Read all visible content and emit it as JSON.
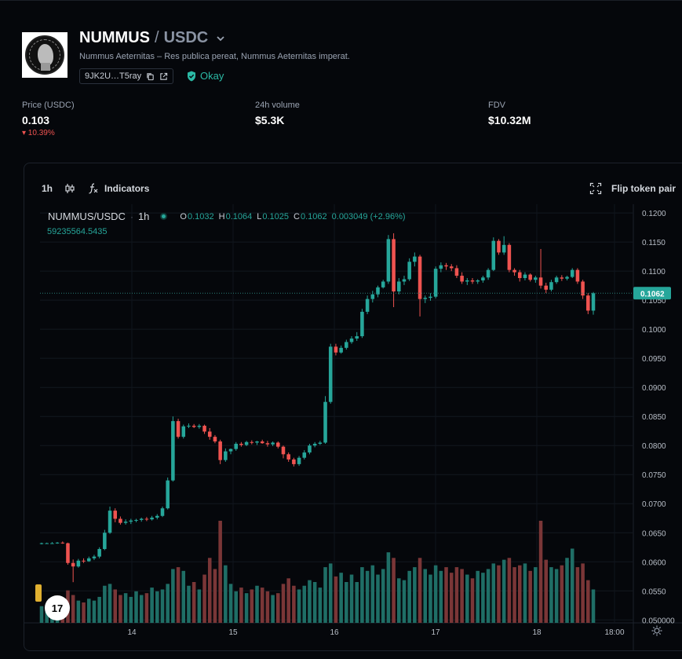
{
  "header": {
    "base_symbol": "NUMMUS",
    "slash": "/",
    "quote_symbol": "USDC",
    "tagline": "Nummus Aeternitas – Res publica pereat, Nummus Aeternitas imperat.",
    "address": "9JK2U…T5ray",
    "status": "Okay",
    "accent": "#26a69a"
  },
  "stats": {
    "price_label": "Price (USDC)",
    "price_value": "0.103",
    "price_change": "▾ 10.39%",
    "volume_label": "24h volume",
    "volume_value": "$5.3K",
    "fdv_label": "FDV",
    "fdv_value": "$10.32M"
  },
  "toolbar": {
    "interval": "1h",
    "indicators_label": "Indicators",
    "flip_label": "Flip token pair"
  },
  "legend": {
    "symbol": "NUMMUS/USDC",
    "interval": "1h",
    "o_key": "O",
    "o_val": "0.1032",
    "h_key": "H",
    "h_val": "0.1064",
    "l_key": "L",
    "l_val": "0.1025",
    "c_key": "C",
    "c_val": "0.1062",
    "change": "0.003049 (+2.96%)",
    "volume": "59235564.5435"
  },
  "tv_logo": "17",
  "chart_data": {
    "type": "candlestick",
    "up_color": "#26a69a",
    "down_color": "#ef5350",
    "last_price": "0.1062",
    "ylim": [
      0.0495,
      0.1215
    ],
    "y_ticks": [
      "0.1200",
      "0.1150",
      "0.1100",
      "0.1050",
      "0.1000",
      "0.0950",
      "0.0900",
      "0.0850",
      "0.0800",
      "0.0750",
      "0.0700",
      "0.0650",
      "0.0600",
      "0.0550",
      "0.050000"
    ],
    "x_ticks": [
      "14",
      "15",
      "16",
      "17",
      "18",
      "18:00"
    ],
    "candles": [
      [
        0.0632,
        0.0633,
        0.063,
        0.0632
      ],
      [
        0.0632,
        0.0633,
        0.0631,
        0.0632
      ],
      [
        0.0632,
        0.0634,
        0.0631,
        0.0632
      ],
      [
        0.0632,
        0.0634,
        0.0631,
        0.0633
      ],
      [
        0.0633,
        0.0635,
        0.0631,
        0.0632
      ],
      [
        0.0632,
        0.0633,
        0.0595,
        0.0598
      ],
      [
        0.0598,
        0.0604,
        0.0565,
        0.0592
      ],
      [
        0.0592,
        0.0605,
        0.059,
        0.0602
      ],
      [
        0.0602,
        0.0606,
        0.0598,
        0.0601
      ],
      [
        0.0601,
        0.0609,
        0.06,
        0.0606
      ],
      [
        0.0606,
        0.0612,
        0.0603,
        0.0609
      ],
      [
        0.0609,
        0.0625,
        0.0606,
        0.0622
      ],
      [
        0.0622,
        0.0655,
        0.062,
        0.065
      ],
      [
        0.065,
        0.0695,
        0.0648,
        0.0688
      ],
      [
        0.0688,
        0.0692,
        0.0668,
        0.0674
      ],
      [
        0.0674,
        0.0678,
        0.0664,
        0.0667
      ],
      [
        0.0667,
        0.0673,
        0.0664,
        0.0669
      ],
      [
        0.0669,
        0.0674,
        0.0665,
        0.0671
      ],
      [
        0.0671,
        0.0674,
        0.0668,
        0.0672
      ],
      [
        0.0672,
        0.0676,
        0.0669,
        0.0674
      ],
      [
        0.0674,
        0.0677,
        0.067,
        0.0673
      ],
      [
        0.0673,
        0.0679,
        0.0671,
        0.0676
      ],
      [
        0.0676,
        0.0682,
        0.0673,
        0.0679
      ],
      [
        0.0679,
        0.0695,
        0.0677,
        0.0692
      ],
      [
        0.0692,
        0.0745,
        0.069,
        0.074
      ],
      [
        0.074,
        0.085,
        0.0738,
        0.0842
      ],
      [
        0.0842,
        0.0846,
        0.0812,
        0.0815
      ],
      [
        0.0815,
        0.0836,
        0.0812,
        0.0833
      ],
      [
        0.0833,
        0.0838,
        0.083,
        0.0834
      ],
      [
        0.0834,
        0.0837,
        0.083,
        0.0832
      ],
      [
        0.0832,
        0.0837,
        0.0829,
        0.0834
      ],
      [
        0.0834,
        0.0836,
        0.082,
        0.0824
      ],
      [
        0.0824,
        0.083,
        0.081,
        0.0815
      ],
      [
        0.0815,
        0.0818,
        0.0804,
        0.0807
      ],
      [
        0.0807,
        0.081,
        0.0768,
        0.0775
      ],
      [
        0.0775,
        0.0795,
        0.0772,
        0.079
      ],
      [
        0.079,
        0.0795,
        0.0785,
        0.0794
      ],
      [
        0.0794,
        0.0806,
        0.0791,
        0.0803
      ],
      [
        0.0803,
        0.0806,
        0.0798,
        0.0801
      ],
      [
        0.0801,
        0.0808,
        0.0799,
        0.0806
      ],
      [
        0.0806,
        0.0809,
        0.0802,
        0.0805
      ],
      [
        0.0805,
        0.0808,
        0.0801,
        0.0807
      ],
      [
        0.0807,
        0.081,
        0.0803,
        0.0804
      ],
      [
        0.0804,
        0.0808,
        0.0798,
        0.0802
      ],
      [
        0.0802,
        0.0807,
        0.0799,
        0.0805
      ],
      [
        0.0805,
        0.0807,
        0.0795,
        0.0798
      ],
      [
        0.0798,
        0.08,
        0.0778,
        0.0785
      ],
      [
        0.0785,
        0.0788,
        0.0772,
        0.0776
      ],
      [
        0.0776,
        0.0779,
        0.0764,
        0.0768
      ],
      [
        0.0768,
        0.0782,
        0.0765,
        0.0779
      ],
      [
        0.0779,
        0.0792,
        0.0776,
        0.0788
      ],
      [
        0.0788,
        0.0803,
        0.0785,
        0.08
      ],
      [
        0.08,
        0.0806,
        0.0797,
        0.0803
      ],
      [
        0.0803,
        0.0808,
        0.0801,
        0.0805
      ],
      [
        0.0805,
        0.0885,
        0.0803,
        0.0875
      ],
      [
        0.0875,
        0.0975,
        0.0872,
        0.097
      ],
      [
        0.097,
        0.0975,
        0.0955,
        0.096
      ],
      [
        0.096,
        0.0972,
        0.0958,
        0.0968
      ],
      [
        0.0968,
        0.0982,
        0.0965,
        0.0978
      ],
      [
        0.0978,
        0.0988,
        0.0975,
        0.0984
      ],
      [
        0.0984,
        0.0995,
        0.098,
        0.0988
      ],
      [
        0.0988,
        0.1035,
        0.0985,
        0.103
      ],
      [
        0.103,
        0.1058,
        0.1026,
        0.1052
      ],
      [
        0.1052,
        0.1066,
        0.1046,
        0.106
      ],
      [
        0.106,
        0.1075,
        0.1055,
        0.1072
      ],
      [
        0.1072,
        0.1085,
        0.107,
        0.1082
      ],
      [
        0.1082,
        0.1162,
        0.1078,
        0.1155
      ],
      [
        0.1155,
        0.1165,
        0.1038,
        0.1065
      ],
      [
        0.1065,
        0.1088,
        0.106,
        0.1082
      ],
      [
        0.1082,
        0.1092,
        0.1076,
        0.1086
      ],
      [
        0.1086,
        0.1122,
        0.1083,
        0.1116
      ],
      [
        0.1116,
        0.1132,
        0.1108,
        0.1125
      ],
      [
        0.1125,
        0.1128,
        0.1022,
        0.1052
      ],
      [
        0.1052,
        0.1058,
        0.1045,
        0.1054
      ],
      [
        0.1054,
        0.1062,
        0.1049,
        0.1056
      ],
      [
        0.1056,
        0.1108,
        0.1053,
        0.1104
      ],
      [
        0.1104,
        0.1115,
        0.1098,
        0.111
      ],
      [
        0.111,
        0.1114,
        0.1102,
        0.1108
      ],
      [
        0.1108,
        0.1112,
        0.11,
        0.1105
      ],
      [
        0.1105,
        0.111,
        0.1088,
        0.1092
      ],
      [
        0.1092,
        0.1098,
        0.1078,
        0.1082
      ],
      [
        0.1082,
        0.1088,
        0.1076,
        0.1084
      ],
      [
        0.1084,
        0.1088,
        0.1078,
        0.1082
      ],
      [
        0.1082,
        0.1086,
        0.1078,
        0.1084
      ],
      [
        0.1084,
        0.1092,
        0.108,
        0.1089
      ],
      [
        0.1089,
        0.1105,
        0.1085,
        0.1102
      ],
      [
        0.1102,
        0.1158,
        0.11,
        0.1152
      ],
      [
        0.1152,
        0.1155,
        0.1128,
        0.1132
      ],
      [
        0.1132,
        0.116,
        0.1128,
        0.1145
      ],
      [
        0.1145,
        0.1148,
        0.1098,
        0.1102
      ],
      [
        0.1102,
        0.1105,
        0.1092,
        0.1098
      ],
      [
        0.1098,
        0.1102,
        0.1082,
        0.1088
      ],
      [
        0.1088,
        0.1098,
        0.1084,
        0.1094
      ],
      [
        0.1094,
        0.1096,
        0.1082,
        0.1085
      ],
      [
        0.1085,
        0.1092,
        0.108,
        0.1089
      ],
      [
        0.1089,
        0.1138,
        0.107,
        0.1075
      ],
      [
        0.1075,
        0.108,
        0.1062,
        0.1068
      ],
      [
        0.1068,
        0.1085,
        0.1065,
        0.1081
      ],
      [
        0.1081,
        0.1092,
        0.1078,
        0.1089
      ],
      [
        0.1089,
        0.1093,
        0.1083,
        0.1087
      ],
      [
        0.1087,
        0.1092,
        0.1084,
        0.109
      ],
      [
        0.109,
        0.1105,
        0.1088,
        0.1102
      ],
      [
        0.1102,
        0.1105,
        0.1078,
        0.1082
      ],
      [
        0.1082,
        0.1085,
        0.1052,
        0.1058
      ],
      [
        0.1058,
        0.1062,
        0.1026,
        0.1032
      ],
      [
        0.1032,
        0.1064,
        0.1025,
        0.1062
      ]
    ],
    "volumes": [
      18,
      20,
      22,
      19,
      21,
      35,
      30,
      24,
      22,
      26,
      24,
      28,
      40,
      42,
      36,
      30,
      32,
      28,
      34,
      30,
      32,
      38,
      34,
      36,
      42,
      58,
      60,
      56,
      40,
      44,
      36,
      52,
      70,
      58,
      110,
      62,
      42,
      34,
      38,
      32,
      36,
      40,
      38,
      34,
      30,
      32,
      42,
      48,
      40,
      36,
      40,
      46,
      44,
      38,
      60,
      64,
      50,
      54,
      44,
      52,
      44,
      60,
      56,
      62,
      52,
      58,
      76,
      70,
      48,
      46,
      56,
      60,
      70,
      58,
      52,
      62,
      56,
      60,
      54,
      60,
      58,
      52,
      48,
      56,
      54,
      58,
      64,
      62,
      68,
      70,
      60,
      62,
      64,
      56,
      60,
      110,
      68,
      60,
      58,
      62,
      70,
      80,
      60,
      64,
      46,
      36
    ]
  }
}
